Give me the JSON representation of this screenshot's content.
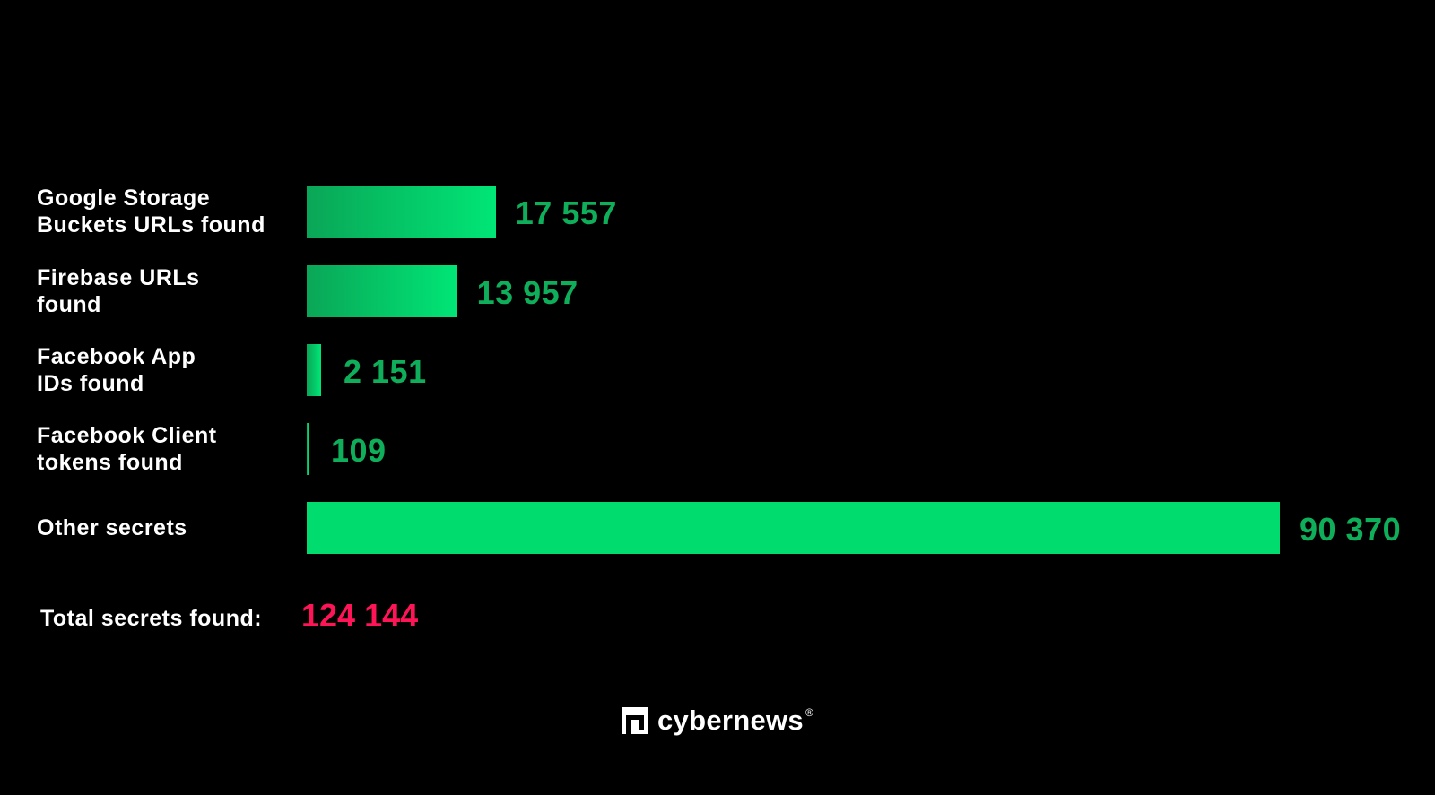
{
  "chart_data": {
    "type": "bar",
    "orientation": "horizontal",
    "categories": [
      "Google Storage Buckets URLs found",
      "Firebase URLs found",
      "Facebook App IDs found",
      "Facebook Client tokens found",
      "Other secrets"
    ],
    "label_lines": [
      [
        "Google Storage",
        "Buckets URLs found"
      ],
      [
        "Firebase URLs",
        "found"
      ],
      [
        "Facebook App",
        "IDs found"
      ],
      [
        "Facebook Client",
        "tokens found"
      ],
      [
        "Other secrets"
      ]
    ],
    "values": [
      17557,
      13957,
      2151,
      109,
      90370
    ],
    "value_labels": [
      "17 557",
      "13 957",
      "2 151",
      "109",
      "90 370"
    ],
    "grid": false,
    "colors": {
      "bar_gradient_start": "#0aa657",
      "bar_gradient_end": "#00e676",
      "bar_solid": "#00dc6e",
      "value_text": "#0fae5a",
      "total_text": "#ff1457",
      "background": "#000000"
    }
  },
  "total": {
    "label": "Total secrets found:",
    "value": "124 144"
  },
  "logo": {
    "text": "cybernews",
    "mark": "®"
  }
}
